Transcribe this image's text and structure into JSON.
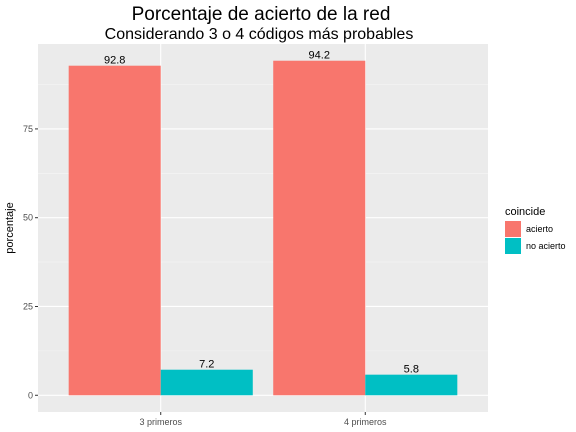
{
  "chart_data": {
    "type": "bar",
    "title": "Porcentaje de acierto de la red",
    "subtitle": "Considerando 3 o 4 códigos más probables",
    "xlabel": "",
    "ylabel": "porcentaje",
    "categories": [
      "3 primeros",
      "4 primeros"
    ],
    "series": [
      {
        "name": "acierto",
        "values": [
          92.8,
          94.2
        ],
        "labels": [
          "92.8",
          "94.2"
        ],
        "color": "#F8766D"
      },
      {
        "name": "no acierto",
        "values": [
          7.2,
          5.8
        ],
        "labels": [
          "7.2",
          "5.8"
        ],
        "color": "#00BFC4"
      }
    ],
    "ylim": [
      -4.71,
      98.91
    ],
    "yticks": [
      0,
      25,
      50,
      75
    ],
    "ytick_labels": [
      "0",
      "25",
      "50",
      "75"
    ],
    "grid": true,
    "legend": {
      "title": "coincide",
      "position": "right"
    },
    "colors": {
      "panel": "#EBEBEB",
      "grid_major": "#FFFFFF",
      "grid_minor": "#F5F5F5"
    }
  }
}
